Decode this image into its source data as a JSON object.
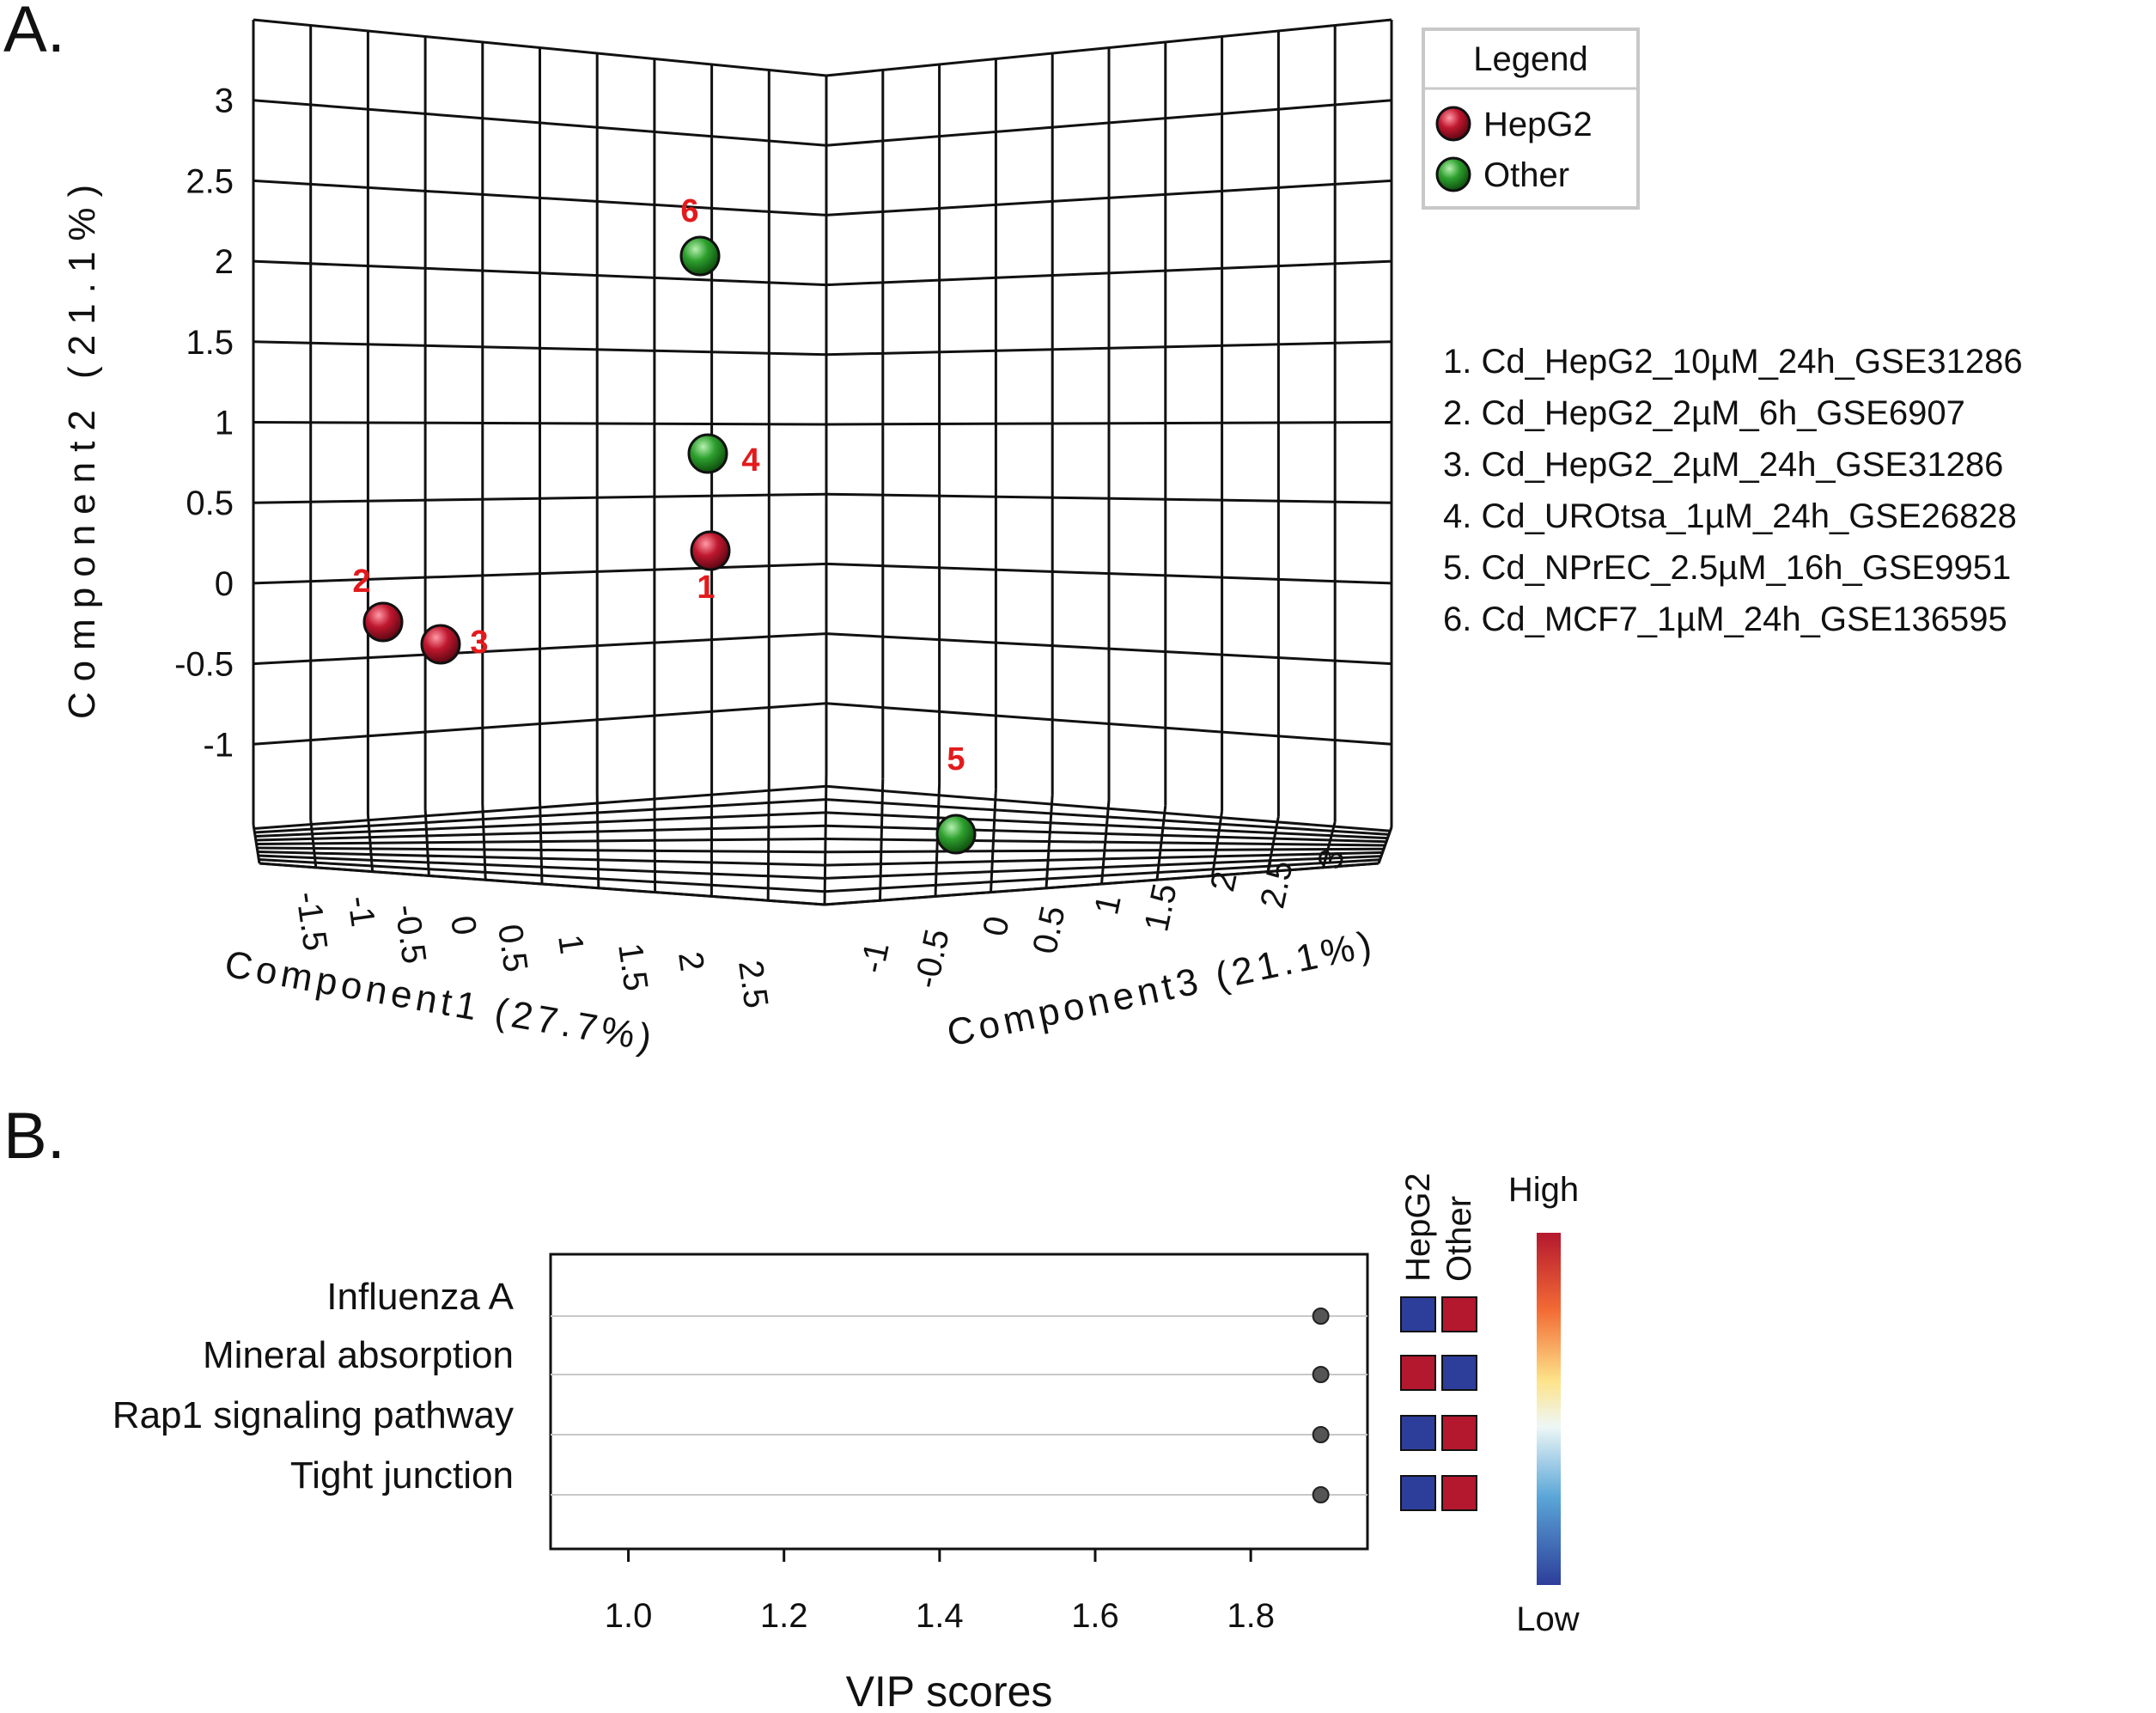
{
  "panel_a": {
    "letter": "A.",
    "legend_title": "Legend",
    "legend_items": [
      {
        "label": "HepG2",
        "color": "#b4182e"
      },
      {
        "label": "Other",
        "color": "#2a9a2a"
      }
    ],
    "sample_list": [
      "1. Cd_HepG2_10µM_24h_GSE31286",
      "2. Cd_HepG2_2µM_6h_GSE6907",
      "3. Cd_HepG2_2µM_24h_GSE31286",
      "4. Cd_UROtsa_1µM_24h_GSE26828",
      "5. Cd_NPrEC_2.5µM_16h_GSE9951",
      "6. Cd_MCF7_1µM_24h_GSE136595"
    ]
  },
  "panel_b": {
    "letter": "B.",
    "heat_columns": [
      "HepG2",
      "Other"
    ],
    "scale_high": "High",
    "scale_low": "Low",
    "heat_colors": {
      "high": "#b4182e",
      "low": "#2d3e9a"
    }
  },
  "chart_data": [
    {
      "type": "scatter",
      "dimensions": 3,
      "xlabel": "Component1 (27.7%)",
      "ylabel": "Component2 (21.1%)",
      "zlabel": "Component3 (21.1%)",
      "x_ticks": [
        "-1.5",
        "-1",
        "-0.5",
        "0",
        "0.5",
        "1",
        "1.5",
        "2",
        "2.5"
      ],
      "y_ticks": [
        "3",
        "2.5",
        "2",
        "1.5",
        "1",
        "0.5",
        "0",
        "-0.5",
        "-1"
      ],
      "z_ticks": [
        "-1",
        "-0.5",
        "0",
        "0.5",
        "1",
        "1.5",
        "2",
        "2.5",
        "3"
      ],
      "points": [
        {
          "label": "1",
          "group": "HepG2",
          "component2": 0.1
        },
        {
          "label": "2",
          "group": "HepG2",
          "component2": -0.6
        },
        {
          "label": "3",
          "group": "HepG2",
          "component2": -0.7
        },
        {
          "label": "4",
          "group": "Other",
          "component2": 0.8
        },
        {
          "label": "5",
          "group": "Other",
          "component2": -1.6
        },
        {
          "label": "6",
          "group": "Other",
          "component2": 1.9
        }
      ],
      "legend_position": "top-right"
    },
    {
      "type": "scatter",
      "xlabel": "VIP scores",
      "xlim": [
        0.9,
        1.95
      ],
      "x_ticks": [
        "1.0",
        "1.2",
        "1.4",
        "1.6",
        "1.8"
      ],
      "categories": [
        "Influenza A",
        "Mineral absorption",
        "Rap1 signaling pathway",
        "Tight junction"
      ],
      "values": [
        1.89,
        1.89,
        1.89,
        1.89
      ],
      "heatmap": {
        "columns": [
          "HepG2",
          "Other"
        ],
        "levels": [
          [
            "low",
            "high"
          ],
          [
            "high",
            "low"
          ],
          [
            "low",
            "high"
          ],
          [
            "low",
            "high"
          ]
        ]
      }
    }
  ]
}
